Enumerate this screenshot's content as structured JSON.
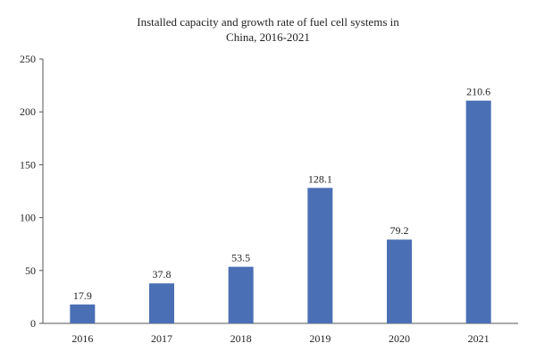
{
  "chart_data": {
    "type": "bar",
    "title_line1": "Installed capacity and growth rate of fuel cell systems in",
    "title_line2": "China, 2016-2021",
    "categories": [
      "2016",
      "2017",
      "2018",
      "2019",
      "2020",
      "2021"
    ],
    "values": [
      17.9,
      37.8,
      53.5,
      128.1,
      79.2,
      210.6
    ],
    "data_labels": [
      "17.9",
      "37.8",
      "53.5",
      "128.1",
      "79.2",
      "210.6"
    ],
    "y_ticks": [
      "0",
      "50",
      "100",
      "150",
      "200",
      "250"
    ],
    "xlabel": "",
    "ylabel": "",
    "ylim": [
      0,
      250
    ],
    "grid": false,
    "legend": "none",
    "bar_color": "#4a6fb5"
  }
}
